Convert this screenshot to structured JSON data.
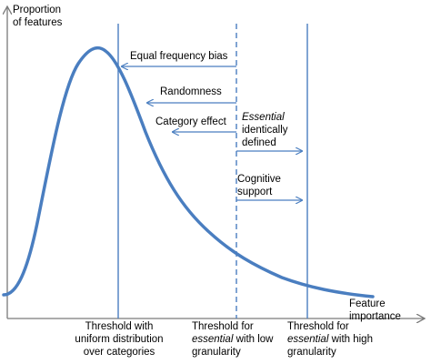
{
  "axes": {
    "y_label_line1": "Proportion",
    "y_label_line2": "of features",
    "x_label": "Feature importance"
  },
  "bias_labels": {
    "equal_frequency": "Equal frequency bias",
    "randomness": "Randomness",
    "category_effect": "Category effect"
  },
  "essential_defined": {
    "word": "Essential",
    "line2": "identically",
    "line3": "defined"
  },
  "cognitive_support": {
    "line1": "Cognitive",
    "line2": "support"
  },
  "thresholds": {
    "uniform": {
      "line1": "Threshold with",
      "line2": "uniform distribution",
      "line3": "over categories"
    },
    "low": {
      "line1": "Threshold for",
      "line2_word": "essential",
      "line2_rest": " with low",
      "line3": "granularity"
    },
    "high": {
      "line1": "Threshold for",
      "line2_word": "essential",
      "line2_rest": " with high",
      "line3": "granularity"
    }
  },
  "colors": {
    "curve": "#4a7ec0",
    "lines": "#4a7ec0",
    "axis": "#7a7a7a"
  }
}
